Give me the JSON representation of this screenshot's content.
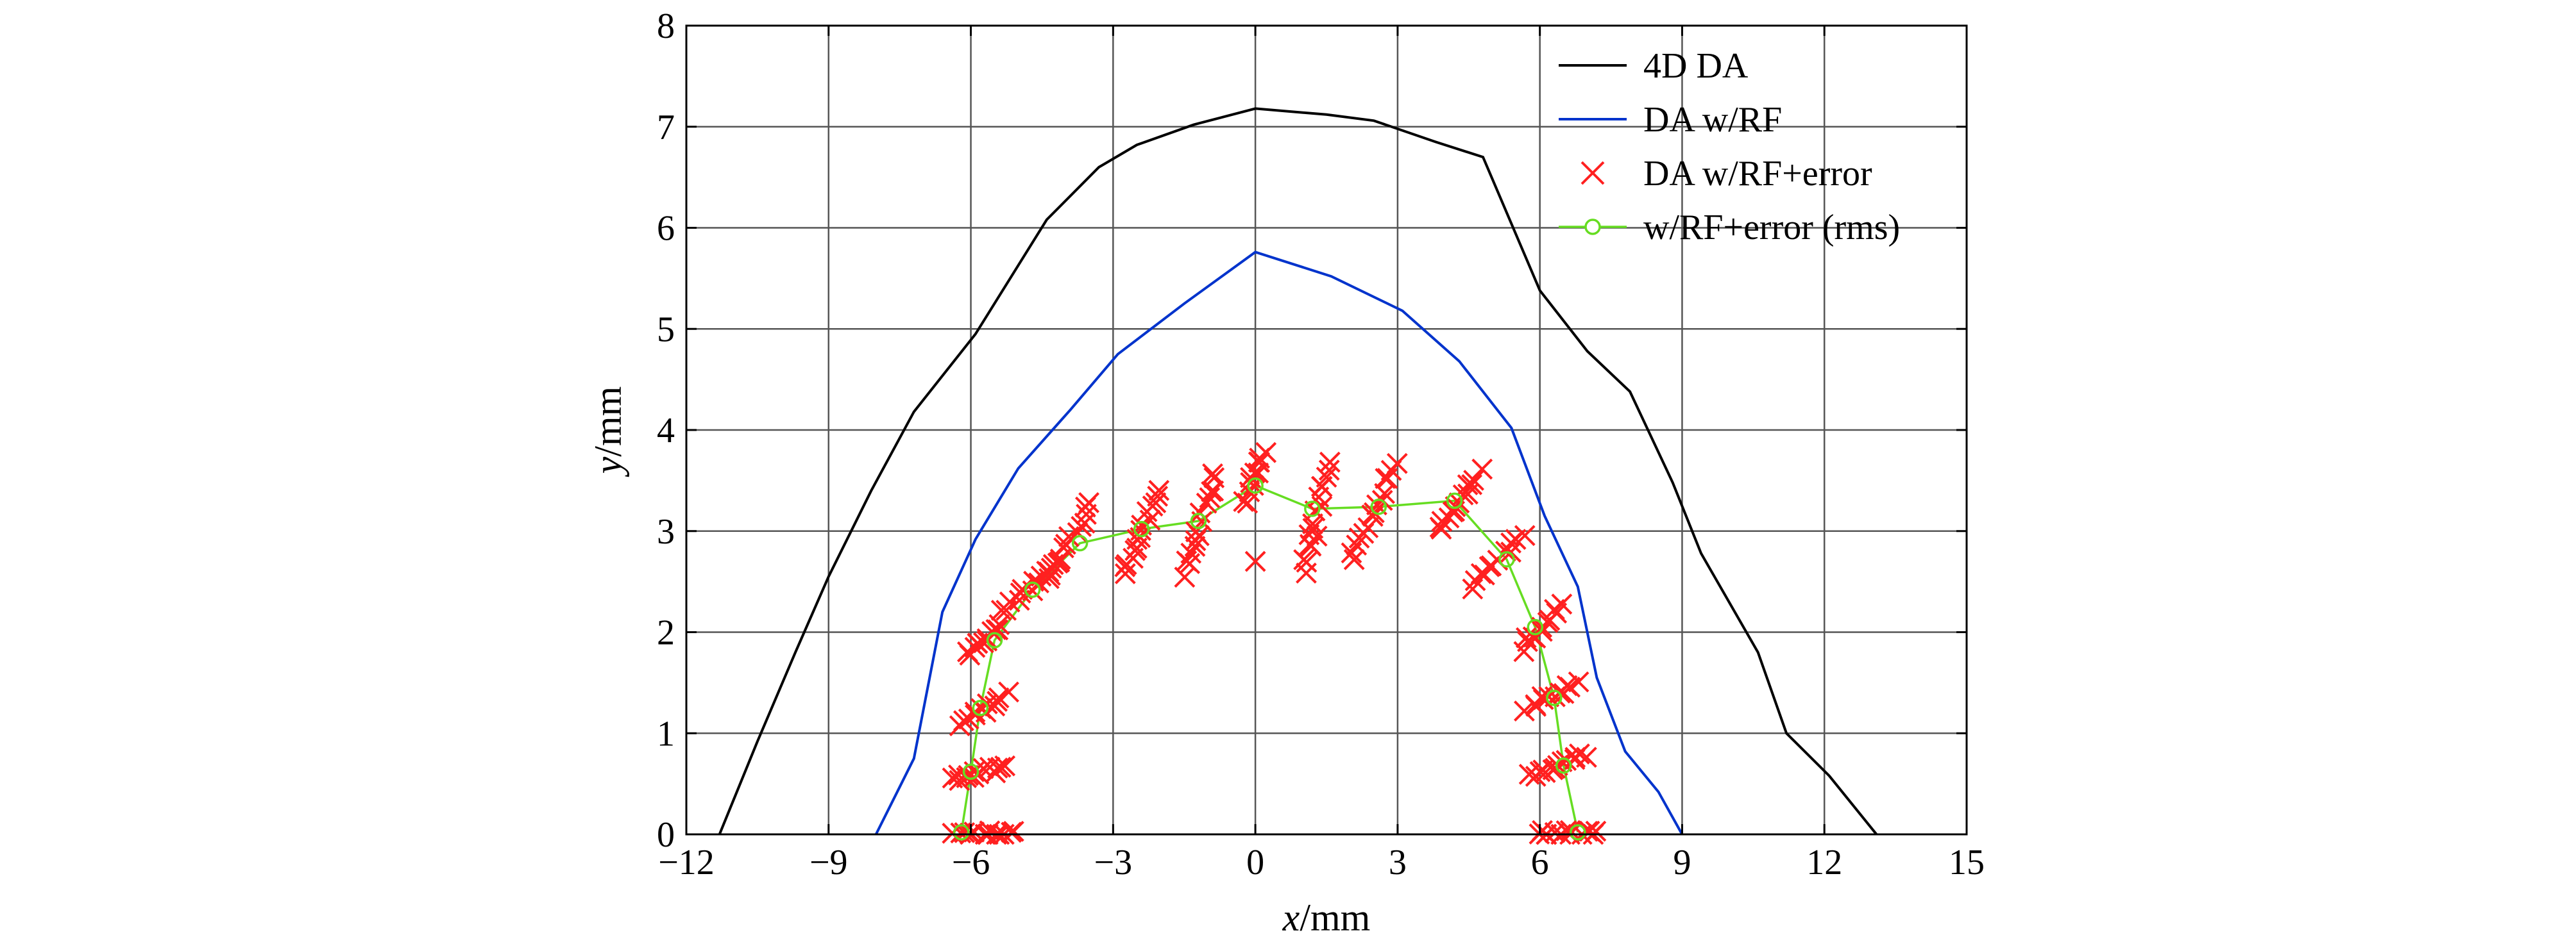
{
  "chart_data": {
    "type": "line",
    "title": "",
    "xlabel": {
      "var": "x",
      "unit": "/mm"
    },
    "ylabel": {
      "var": "y",
      "unit": "/mm"
    },
    "xlim": [
      -12,
      15
    ],
    "ylim": [
      0,
      8
    ],
    "xticks": [
      -12,
      -9,
      -6,
      -3,
      0,
      3,
      6,
      9,
      12,
      15
    ],
    "yticks": [
      0,
      1,
      2,
      3,
      4,
      5,
      6,
      7,
      8
    ],
    "xtick_labels": [
      "−12",
      "−9",
      "−6",
      "−3",
      "0",
      "3",
      "6",
      "9",
      "12",
      "15"
    ],
    "ytick_labels": [
      "0",
      "1",
      "2",
      "3",
      "4",
      "5",
      "6",
      "7",
      "8"
    ],
    "grid": true,
    "legend_position": "top-right",
    "series": [
      {
        "name": "4D DA",
        "style": "line",
        "color": "#000000",
        "points": [
          [
            -11.3,
            0
          ],
          [
            -10.5,
            0.92
          ],
          [
            -9.7,
            1.8
          ],
          [
            -9.0,
            2.55
          ],
          [
            -8.1,
            3.4
          ],
          [
            -7.2,
            4.18
          ],
          [
            -5.9,
            4.95
          ],
          [
            -4.4,
            6.08
          ],
          [
            -3.3,
            6.6
          ],
          [
            -2.5,
            6.82
          ],
          [
            -1.3,
            7.02
          ],
          [
            0,
            7.18
          ],
          [
            1.5,
            7.12
          ],
          [
            2.5,
            7.06
          ],
          [
            3.8,
            6.85
          ],
          [
            4.8,
            6.7
          ],
          [
            6.0,
            5.38
          ],
          [
            7.0,
            4.78
          ],
          [
            7.9,
            4.38
          ],
          [
            8.8,
            3.48
          ],
          [
            9.4,
            2.78
          ],
          [
            10.6,
            1.8
          ],
          [
            11.2,
            1.0
          ],
          [
            12.1,
            0.58
          ],
          [
            13.1,
            0
          ]
        ]
      },
      {
        "name": "DA w/RF",
        "style": "line",
        "color": "#0033cc",
        "points": [
          [
            -8.0,
            0
          ],
          [
            -7.2,
            0.75
          ],
          [
            -6.6,
            2.2
          ],
          [
            -5.9,
            2.92
          ],
          [
            -5.0,
            3.62
          ],
          [
            -3.9,
            4.2
          ],
          [
            -2.9,
            4.75
          ],
          [
            -1.5,
            5.25
          ],
          [
            0,
            5.76
          ],
          [
            1.6,
            5.52
          ],
          [
            3.1,
            5.18
          ],
          [
            4.3,
            4.68
          ],
          [
            5.4,
            4.02
          ],
          [
            6.1,
            3.15
          ],
          [
            6.8,
            2.45
          ],
          [
            7.2,
            1.55
          ],
          [
            7.8,
            0.82
          ],
          [
            8.5,
            0.42
          ],
          [
            9.0,
            0
          ]
        ]
      },
      {
        "name": "DA w/RF+error",
        "style": "marker-x",
        "color": "#ff2020",
        "clusters": [
          {
            "x": [
              -6.4,
              -5.0
            ],
            "y": [
              0.0,
              0.0
            ],
            "n": 14
          },
          {
            "x": [
              -6.4,
              -5.2
            ],
            "y": [
              0.55,
              0.68
            ],
            "n": 14
          },
          {
            "x": [
              -6.3,
              -5.2
            ],
            "y": [
              1.1,
              1.38
            ],
            "n": 12
          },
          {
            "x": [
              -6.1,
              -5.3
            ],
            "y": [
              1.78,
              2.06
            ],
            "n": 12
          },
          {
            "x": [
              -5.3,
              -4.1
            ],
            "y": [
              2.2,
              2.72
            ],
            "n": 14
          },
          {
            "x": [
              -4.4,
              -3.4
            ],
            "y": [
              2.5,
              3.3
            ],
            "n": 14
          },
          {
            "x": [
              -2.8,
              -2.0
            ],
            "y": [
              2.55,
              3.45
            ],
            "n": 16
          },
          {
            "x": [
              -1.5,
              -0.8
            ],
            "y": [
              2.55,
              3.6
            ],
            "n": 16
          },
          {
            "x": [
              -0.2,
              0.2
            ],
            "y": [
              3.25,
              3.85
            ],
            "n": 12
          },
          {
            "x": [
              1.0,
              1.6
            ],
            "y": [
              2.6,
              3.72
            ],
            "n": 16
          },
          {
            "x": [
              2.0,
              3.0
            ],
            "y": [
              2.7,
              3.7
            ],
            "n": 16
          },
          {
            "x": [
              3.8,
              4.8
            ],
            "y": [
              3.0,
              3.6
            ],
            "n": 14
          },
          {
            "x": [
              4.5,
              5.7
            ],
            "y": [
              2.45,
              2.98
            ],
            "n": 12
          },
          {
            "x": [
              5.6,
              6.5
            ],
            "y": [
              1.82,
              2.28
            ],
            "n": 12
          },
          {
            "x": [
              5.7,
              6.8
            ],
            "y": [
              1.22,
              1.5
            ],
            "n": 12
          },
          {
            "x": [
              5.8,
              7.0
            ],
            "y": [
              0.55,
              0.8
            ],
            "n": 14
          },
          {
            "x": [
              5.9,
              7.3
            ],
            "y": [
              0.0,
              0.0
            ],
            "n": 14
          }
        ],
        "extra_points": [
          [
            0,
            2.7
          ],
          [
            1.3,
            2.95
          ]
        ]
      },
      {
        "name": "w/RF+error (rms)",
        "style": "line-circle",
        "color": "#66dd22",
        "points": [
          [
            -6.2,
            0.02
          ],
          [
            -6.0,
            0.62
          ],
          [
            -5.8,
            1.25
          ],
          [
            -5.5,
            1.92
          ],
          [
            -4.7,
            2.42
          ],
          [
            -3.7,
            2.88
          ],
          [
            -2.4,
            3.02
          ],
          [
            -1.2,
            3.1
          ],
          [
            0,
            3.45
          ],
          [
            1.2,
            3.22
          ],
          [
            2.6,
            3.24
          ],
          [
            4.2,
            3.3
          ],
          [
            5.3,
            2.72
          ],
          [
            5.9,
            2.05
          ],
          [
            6.3,
            1.35
          ],
          [
            6.5,
            0.68
          ],
          [
            6.8,
            0.02
          ]
        ]
      }
    ]
  }
}
